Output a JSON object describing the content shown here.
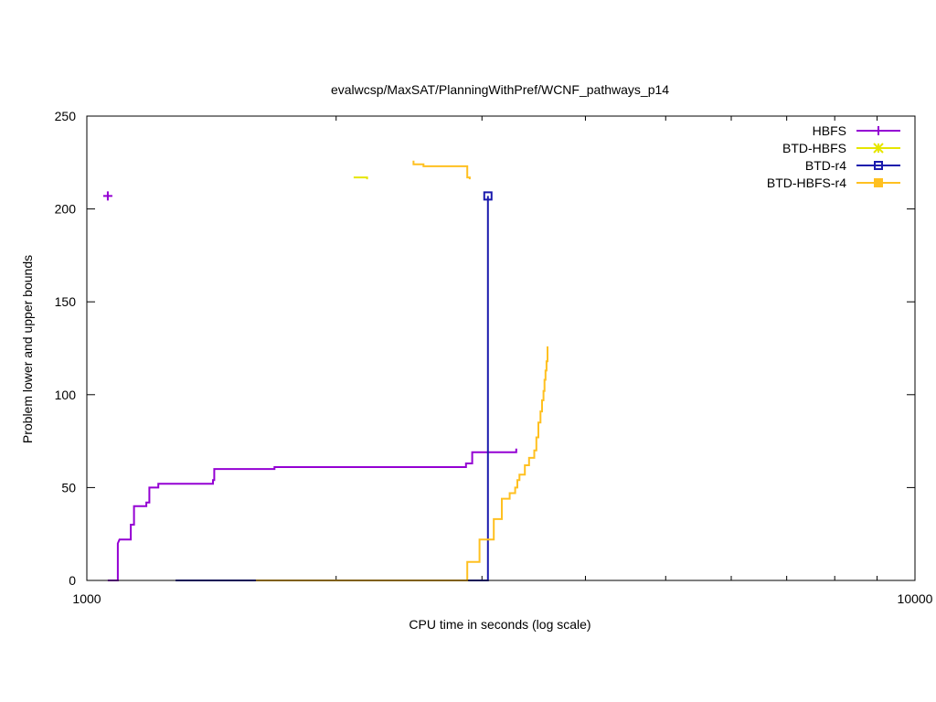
{
  "chart_data": {
    "type": "line",
    "title": "evalwcsp/MaxSAT/PlanningWithPref/WCNF_pathways_p14",
    "xlabel": "CPU time in seconds (log scale)",
    "ylabel": "Problem lower and upper bounds",
    "x_scale": "log",
    "xlim": [
      1000,
      10000
    ],
    "ylim": [
      0,
      250
    ],
    "x_ticks": [
      {
        "value": 1000,
        "label": "1000"
      },
      {
        "value": 10000,
        "label": "10000"
      }
    ],
    "x_minor_ticks": [
      2000,
      3000,
      4000,
      5000,
      6000,
      7000,
      8000,
      9000
    ],
    "y_ticks": [
      {
        "value": 0,
        "label": "0"
      },
      {
        "value": 50,
        "label": "50"
      },
      {
        "value": 100,
        "label": "100"
      },
      {
        "value": 150,
        "label": "150"
      },
      {
        "value": 200,
        "label": "200"
      },
      {
        "value": 250,
        "label": "250"
      }
    ],
    "grid": false,
    "legend_position": "top-right",
    "series": [
      {
        "name": "HBFS",
        "color": "#9400d3",
        "marker": "plus",
        "upper_bound": [
          [
            1060,
            207
          ]
        ],
        "lower_bound": [
          [
            1060,
            0
          ],
          [
            1090,
            0
          ],
          [
            1090,
            20
          ],
          [
            1095,
            22
          ],
          [
            1130,
            22
          ],
          [
            1130,
            30
          ],
          [
            1140,
            30
          ],
          [
            1140,
            40
          ],
          [
            1180,
            40
          ],
          [
            1180,
            42
          ],
          [
            1190,
            42
          ],
          [
            1190,
            50
          ],
          [
            1220,
            50
          ],
          [
            1220,
            52
          ],
          [
            1420,
            52
          ],
          [
            1420,
            54
          ],
          [
            1425,
            54
          ],
          [
            1425,
            60
          ],
          [
            1685,
            60
          ],
          [
            1685,
            61
          ],
          [
            2870,
            61
          ],
          [
            2870,
            63
          ],
          [
            2920,
            63
          ],
          [
            2920,
            69
          ],
          [
            3300,
            69
          ],
          [
            3300,
            71
          ]
        ]
      },
      {
        "name": "BTD-HBFS",
        "color": "#e6e600",
        "marker": "cross",
        "upper_bound": [
          [
            2100,
            217
          ],
          [
            2180,
            217
          ],
          [
            2180,
            216
          ]
        ],
        "lower_bound": []
      },
      {
        "name": "BTD-r4",
        "color": "#1a1aad",
        "marker": "square",
        "upper_bound": [
          [
            3050,
            207
          ]
        ],
        "lower_bound": [
          [
            1280,
            0
          ],
          [
            1600,
            0
          ],
          [
            3050,
            0
          ],
          [
            3050,
            207
          ]
        ]
      },
      {
        "name": "BTD-HBFS-r4",
        "color": "#ffc020",
        "marker": "filled-square",
        "upper_bound": [
          [
            2480,
            226
          ],
          [
            2480,
            224
          ],
          [
            2550,
            224
          ],
          [
            2550,
            223
          ],
          [
            2880,
            223
          ],
          [
            2880,
            217
          ],
          [
            2900,
            217
          ],
          [
            2900,
            216
          ]
        ],
        "lower_bound": [
          [
            1600,
            0
          ],
          [
            2880,
            0
          ],
          [
            2880,
            10
          ],
          [
            2980,
            10
          ],
          [
            2980,
            22
          ],
          [
            3100,
            22
          ],
          [
            3100,
            33
          ],
          [
            3170,
            33
          ],
          [
            3170,
            44
          ],
          [
            3240,
            44
          ],
          [
            3240,
            47
          ],
          [
            3290,
            47
          ],
          [
            3290,
            50
          ],
          [
            3310,
            50
          ],
          [
            3310,
            54
          ],
          [
            3330,
            54
          ],
          [
            3330,
            57
          ],
          [
            3380,
            57
          ],
          [
            3380,
            62
          ],
          [
            3420,
            62
          ],
          [
            3420,
            66
          ],
          [
            3470,
            66
          ],
          [
            3470,
            70
          ],
          [
            3490,
            70
          ],
          [
            3490,
            77
          ],
          [
            3510,
            77
          ],
          [
            3510,
            85
          ],
          [
            3530,
            85
          ],
          [
            3530,
            91
          ],
          [
            3545,
            91
          ],
          [
            3545,
            97
          ],
          [
            3560,
            97
          ],
          [
            3560,
            102
          ],
          [
            3570,
            102
          ],
          [
            3570,
            108
          ],
          [
            3580,
            108
          ],
          [
            3580,
            113
          ],
          [
            3590,
            113
          ],
          [
            3590,
            118
          ],
          [
            3600,
            118
          ],
          [
            3600,
            126
          ]
        ]
      }
    ]
  }
}
